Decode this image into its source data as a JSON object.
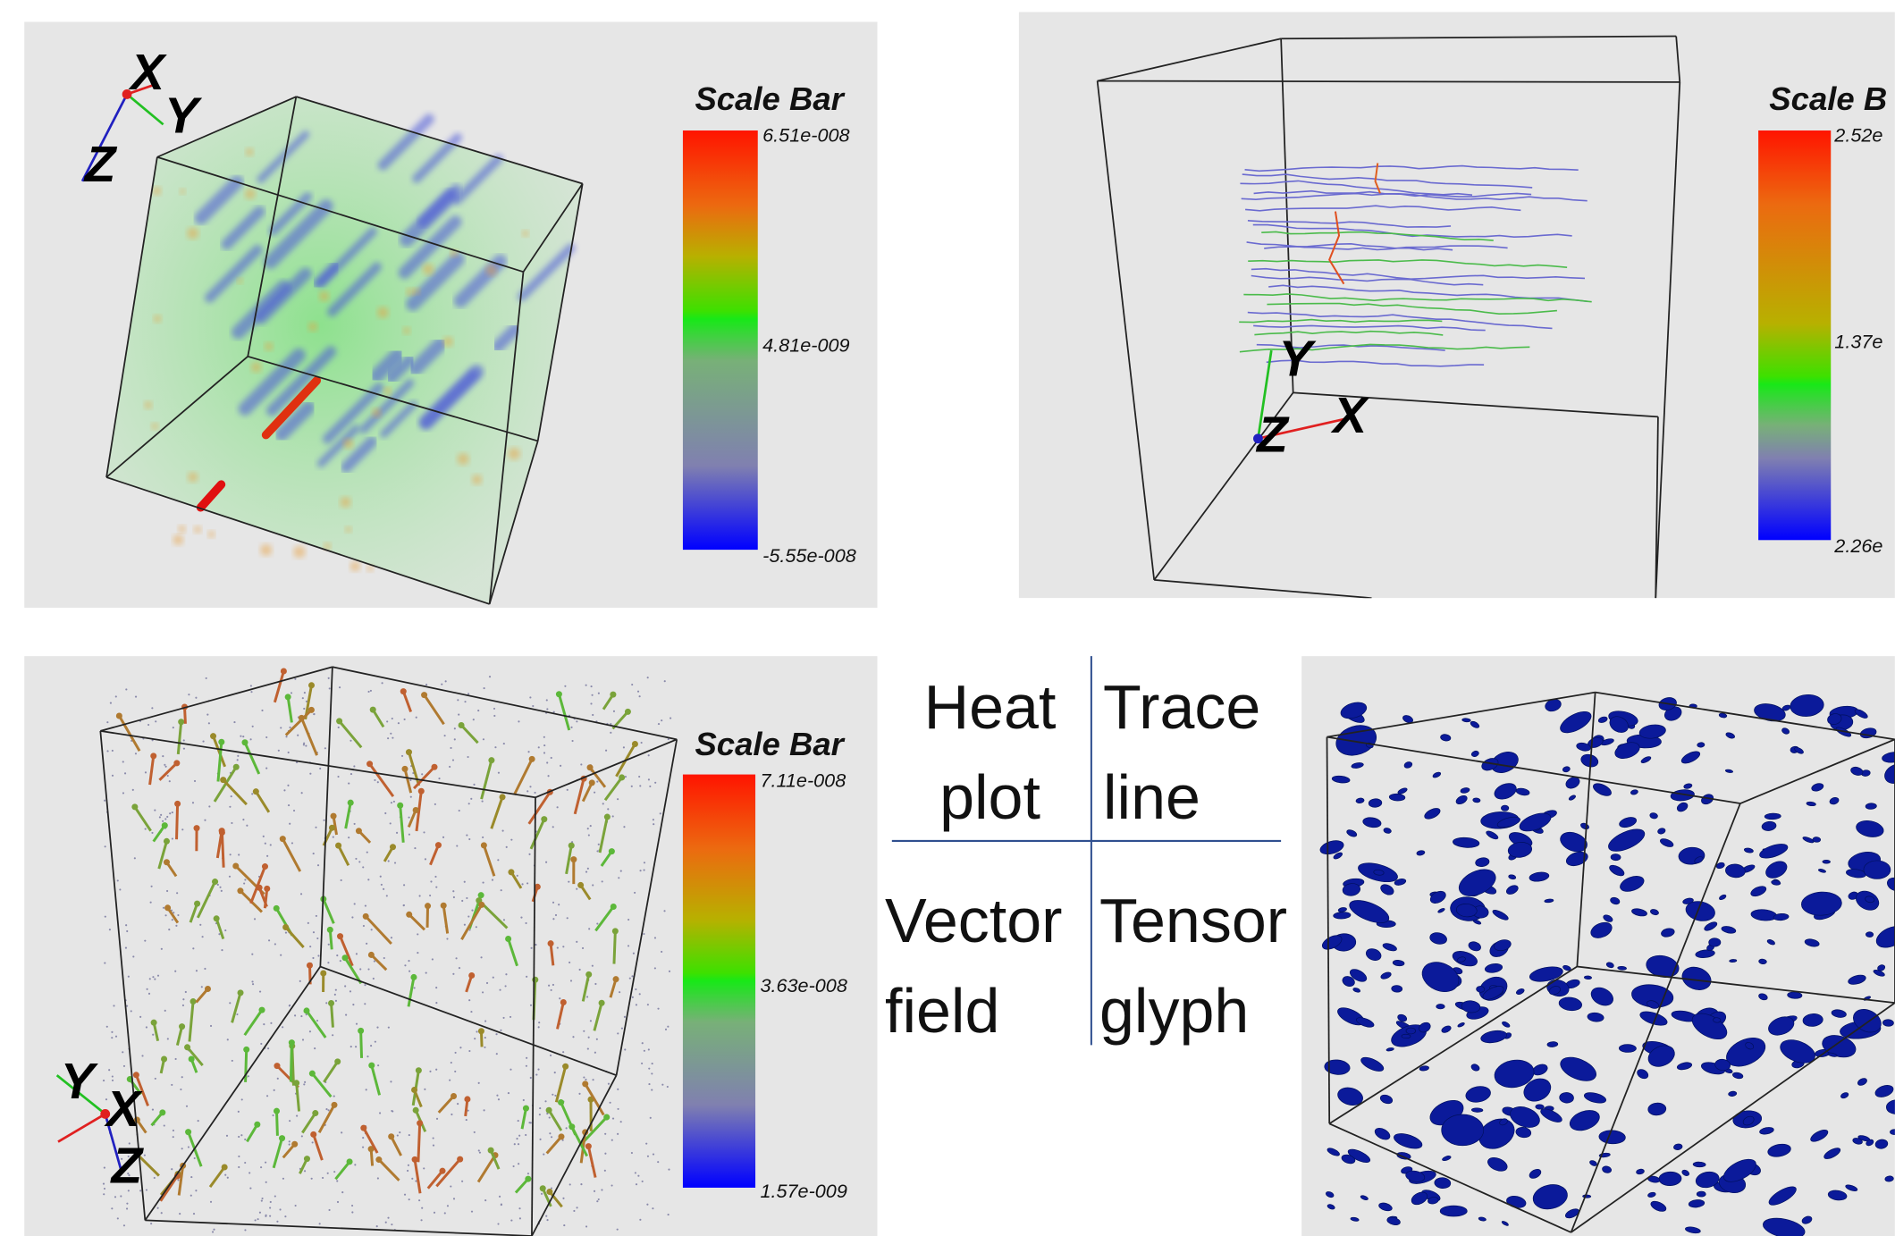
{
  "views": [
    {
      "scale_bar": {
        "title": "Scale Bar",
        "labels": [
          "6.51e-008",
          "4.81e-009",
          "-5.55e-008"
        ]
      },
      "axes": {
        "x": "X",
        "y": "Y",
        "z": "Z"
      }
    },
    {
      "scale_bar": {
        "title": "Scale B",
        "labels": [
          "2.52e",
          "1.37e",
          "2.26e"
        ]
      },
      "axes": {
        "x": "X",
        "y": "Y",
        "z": "Z"
      }
    },
    {
      "scale_bar": {
        "title": "Scale Bar",
        "labels": [
          "7.11e-008",
          "3.63e-008",
          "1.57e-009"
        ]
      },
      "axes": {
        "x": "X",
        "y": "Y",
        "z": "Z"
      }
    }
  ],
  "legend": {
    "rows": [
      [
        "Heat plot",
        "Trace line"
      ],
      [
        "Vector field",
        "Tensor glyph"
      ]
    ]
  }
}
